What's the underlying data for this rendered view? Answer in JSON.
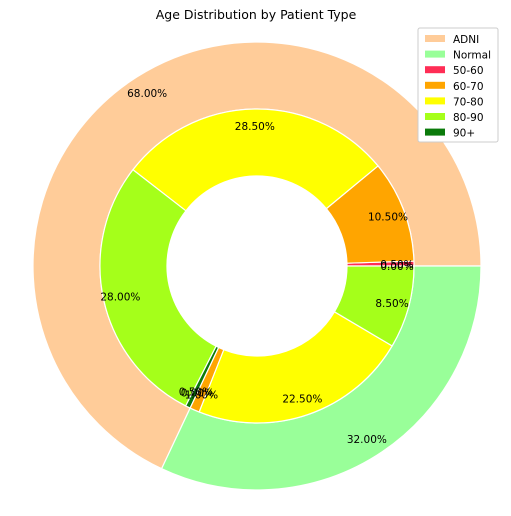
{
  "chart_data": {
    "type": "pie",
    "variant": "nested-donut",
    "title": "Age Distribution by Patient Type",
    "legend": {
      "placement": "top-right",
      "entries": [
        {
          "label": "ADNI",
          "color": "#ffcc99"
        },
        {
          "label": "Normal",
          "color": "#99ff99"
        },
        {
          "label": "50-60",
          "color": "#ff2d55"
        },
        {
          "label": "60-70",
          "color": "#ffa500"
        },
        {
          "label": "70-80",
          "color": "#ffff00"
        },
        {
          "label": "80-90",
          "color": "#a5ff1a"
        },
        {
          "label": "90+",
          "color": "#0b7a0b"
        }
      ]
    },
    "outer": [
      {
        "label": "ADNI",
        "value": 68.0,
        "text": "68.00%",
        "color": "#ffcc99"
      },
      {
        "label": "Normal",
        "value": 32.0,
        "text": "32.00%",
        "color": "#99ff99"
      }
    ],
    "inner": [
      {
        "group": "ADNI",
        "label": "50-60",
        "value": 0.5,
        "text": "0.50%",
        "color": "#ff2d55"
      },
      {
        "group": "ADNI",
        "label": "60-70",
        "value": 10.5,
        "text": "10.50%",
        "color": "#ffa500"
      },
      {
        "group": "ADNI",
        "label": "70-80",
        "value": 28.5,
        "text": "28.50%",
        "color": "#ffff00"
      },
      {
        "group": "ADNI",
        "label": "80-90",
        "value": 28.0,
        "text": "28.00%",
        "color": "#a5ff1a"
      },
      {
        "group": "ADNI",
        "label": "90+",
        "value": 0.5,
        "text": "0.50%",
        "color": "#0b7a0b"
      },
      {
        "group": "Normal",
        "label": "50-60",
        "value": 0.0,
        "text": "0.00%",
        "color": "#ff2d55"
      },
      {
        "group": "Normal",
        "label": "60-70",
        "value": 1.0,
        "text": "1.00%",
        "color": "#ffa500"
      },
      {
        "group": "Normal",
        "label": "70-80",
        "value": 22.5,
        "text": "22.50%",
        "color": "#ffff00"
      },
      {
        "group": "Normal",
        "label": "80-90",
        "value": 8.5,
        "text": "8.50%",
        "color": "#a5ff1a"
      },
      {
        "group": "Normal",
        "label": "90+",
        "value": 0.0,
        "text": "0.00%",
        "color": "#0b7a0b"
      }
    ]
  }
}
